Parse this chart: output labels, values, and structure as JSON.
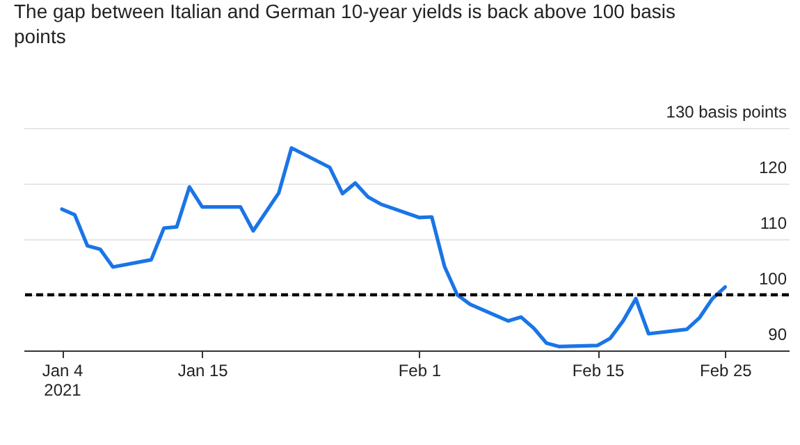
{
  "chart_data": {
    "type": "line",
    "title": "The gap between Italian and German 10-year yields is back above 100 basis points",
    "x": [
      "2021-01-04",
      "2021-01-05",
      "2021-01-06",
      "2021-01-07",
      "2021-01-08",
      "2021-01-11",
      "2021-01-12",
      "2021-01-13",
      "2021-01-14",
      "2021-01-15",
      "2021-01-18",
      "2021-01-19",
      "2021-01-21",
      "2021-01-22",
      "2021-01-25",
      "2021-01-26",
      "2021-01-27",
      "2021-01-28",
      "2021-01-29",
      "2021-02-01",
      "2021-02-02",
      "2021-02-03",
      "2021-02-04",
      "2021-02-05",
      "2021-02-08",
      "2021-02-09",
      "2021-02-10",
      "2021-02-11",
      "2021-02-12",
      "2021-02-15",
      "2021-02-16",
      "2021-02-17",
      "2021-02-18",
      "2021-02-19",
      "2021-02-22",
      "2021-02-23",
      "2021-02-24",
      "2021-02-25"
    ],
    "series": [
      {
        "color": "#1a75e6",
        "values": [
          115.4,
          114.4,
          108.8,
          108.2,
          105.0,
          106.3,
          112.0,
          112.2,
          119.4,
          115.8,
          115.8,
          111.5,
          118.3,
          126.4,
          122.9,
          118.2,
          120.1,
          117.6,
          116.3,
          113.9,
          114.0,
          105.1,
          100.0,
          98.3,
          95.3,
          96.0,
          94.0,
          91.3,
          90.7,
          90.9,
          92.2,
          95.3,
          99.3,
          93.0,
          93.8,
          95.9,
          99.3,
          101.4
        ]
      }
    ],
    "xlim": [
      "2021-01-01",
      "2021-03-02"
    ],
    "xticks": [
      {
        "value": "2021-01-04",
        "label": "Jan 4\n2021"
      },
      {
        "value": "2021-01-15",
        "label": "Jan 15"
      },
      {
        "value": "2021-02-01",
        "label": "Feb 1"
      },
      {
        "value": "2021-02-15",
        "label": "Feb 15"
      },
      {
        "value": "2021-02-25",
        "label": "Feb 25"
      }
    ],
    "ylim": [
      90,
      130
    ],
    "yticks": [
      90,
      100,
      110,
      120,
      {
        "value": 130,
        "label": "130 basis points"
      }
    ],
    "grid": "y",
    "ref_lines": [
      {
        "axis": "y",
        "value": 100,
        "color": "#000000",
        "line_style": "dashed"
      }
    ]
  }
}
